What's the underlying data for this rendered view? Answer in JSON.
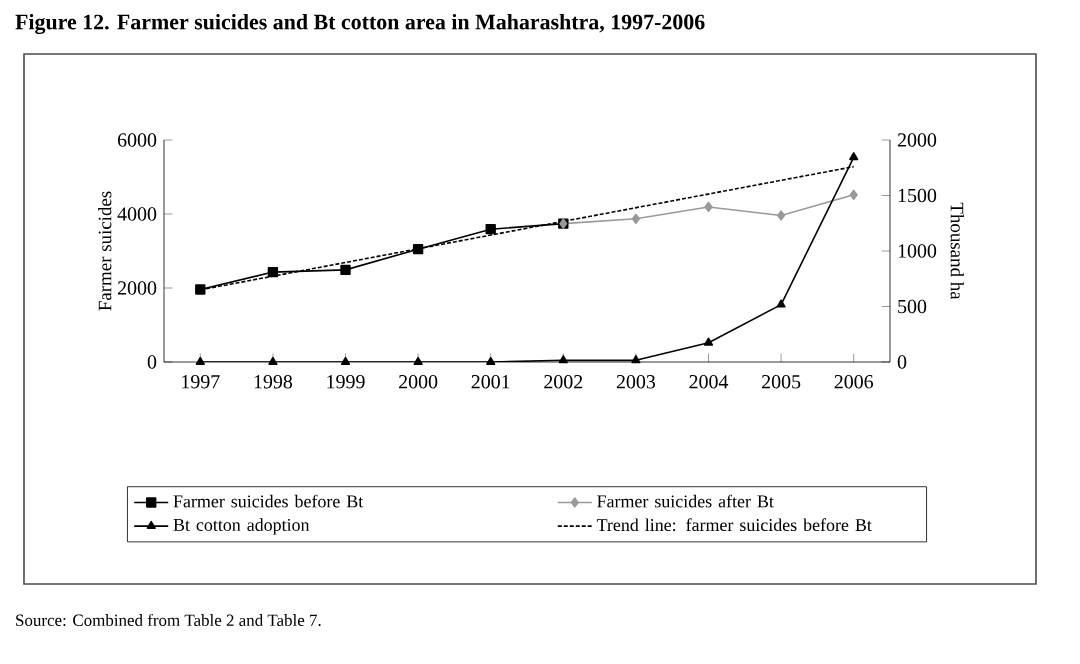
{
  "chart_data": {
    "type": "line",
    "title": "Figure 12. Farmer suicides and Bt cotton area in Maharashtra, 1997-2006",
    "ylabel": "Farmer suicides",
    "y2label": "Thousand ha",
    "xlim": [
      1996.5,
      2006.5
    ],
    "xticks": [
      1997,
      1998,
      1999,
      2000,
      2001,
      2002,
      2003,
      2004,
      2005,
      2006
    ],
    "ylim": [
      0,
      6000
    ],
    "yticks": [
      0,
      2000,
      4000,
      6000
    ],
    "y2lim": [
      0,
      2000
    ],
    "y2ticks": [
      0,
      500,
      1000,
      1500,
      2000
    ],
    "legend": "bottom",
    "grid": false,
    "series": [
      {
        "name": "Farmer suicides before Bt",
        "color": "#000000",
        "marker": "square",
        "line_style": "solid",
        "x": [
          1997,
          1998,
          1999,
          2000,
          2001,
          2002
        ],
        "values": [
          1960,
          2430,
          2490,
          3050,
          3590,
          3740
        ]
      },
      {
        "name": "Farmer suicides after Bt",
        "color": "#999999",
        "marker": "diamond",
        "line_style": "solid",
        "x": [
          2002,
          2003,
          2004,
          2005,
          2006
        ],
        "values": [
          3740,
          3870,
          4190,
          3960,
          4520
        ]
      },
      {
        "name": "Bt cotton adoption",
        "color": "#000000",
        "marker": "triangle",
        "line_style": "solid",
        "axis": "y2",
        "x": [
          1997,
          1998,
          1999,
          2000,
          2001,
          2002,
          2003,
          2004,
          2005,
          2006
        ],
        "values": [
          0,
          0,
          0,
          0,
          0,
          15,
          15,
          174,
          517,
          1844
        ]
      },
      {
        "name": "Trend line: farmer suicides before Bt",
        "color": "#000000",
        "type": "line",
        "marker": "none",
        "line_style": "dashed",
        "x": [
          1997,
          2006
        ],
        "values": [
          1950,
          5280
        ]
      }
    ],
    "annotations": [
      "Source: Combined from Table 2 and Table 7."
    ]
  }
}
